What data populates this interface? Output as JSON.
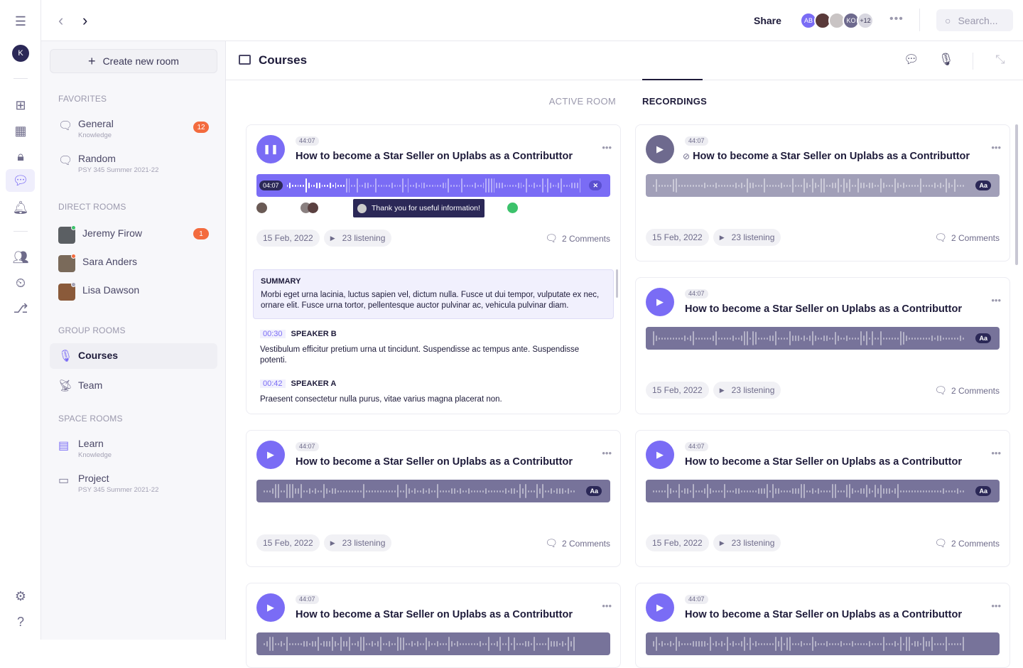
{
  "rail": {
    "avatar_initial": "K",
    "icons": [
      "menu-expand-icon",
      "add-square-icon",
      "grid-icon",
      "lock-icon",
      "chat-icon",
      "bell-icon",
      "people-icon",
      "calendar-clock-icon",
      "workflow-icon",
      "gear-icon",
      "help-icon"
    ]
  },
  "topbar": {
    "share_label": "Share",
    "avatars": [
      {
        "initials": "AB",
        "color": "#7a6cf5"
      },
      {
        "initials": "",
        "color": "#5a3a3a"
      },
      {
        "initials": "",
        "color": "#c9c4c4"
      },
      {
        "initials": "KO",
        "color": "#6e6a8e"
      },
      {
        "initials": "+12",
        "color": "#d8d7e0"
      }
    ],
    "search_placeholder": "Search..."
  },
  "sidebar": {
    "create_label": "Create new room",
    "favorites_label": "FAVORITES",
    "favorites": [
      {
        "name": "General",
        "sub": "Knowledge",
        "badge": "12"
      },
      {
        "name": "Random",
        "sub": "PSY 345 Summer 2021-22"
      }
    ],
    "direct_label": "DIRECT ROOMS",
    "direct": [
      {
        "name": "Jeremy Firow",
        "badge": "1",
        "status": "#3cc26b",
        "photo": "#5b5f63"
      },
      {
        "name": "Sara Anders",
        "status": "#f36b3e",
        "photo": "#7a6a5a"
      },
      {
        "name": "Lisa Dawson",
        "status": "#a4a2b5",
        "photo": "#8a5a3a"
      }
    ],
    "group_label": "GROUP ROOMS",
    "group": [
      {
        "name": "Courses"
      },
      {
        "name": "Team"
      }
    ],
    "space_label": "SPACE ROOMS",
    "space": [
      {
        "name": "Learn",
        "sub": "Knowledge"
      },
      {
        "name": "Project",
        "sub": "PSY 345 Summer 2021-22"
      }
    ]
  },
  "main": {
    "title": "Courses",
    "tabs": [
      {
        "label": "ACTIVE ROOM",
        "active": false
      },
      {
        "label": "RECORDINGS",
        "active": true
      }
    ]
  },
  "colors": {
    "accent": "#7a6cf5",
    "muted_play": "#6e6a8e",
    "wave_light": "#a19fb8",
    "wave_dark": "#77739a",
    "badge": "#f36b3e"
  },
  "cards": [
    {
      "duration": "44:07",
      "title": "How to become a Star Seller on Uplabs as a Contributtor",
      "date": "15 Feb, 2022",
      "listening": "23 listening",
      "comments": "2 Comments",
      "state": "playing",
      "current_time": "04:07",
      "tooltip": "Thank you for useful information!",
      "summary_label": "SUMMARY",
      "summary": "Morbi eget urna lacinia, luctus sapien vel, dictum nulla. Fusce ut dui tempor, vulputate ex nec, ornare elit. Fusce urna tortor, pellentesque auctor pulvinar ac, vehicula pulvinar diam.",
      "transcript": [
        {
          "time": "00:30",
          "speaker": "SPEAKER B",
          "text": "Vestibulum efficitur pretium urna ut tincidunt. Suspendisse ac tempus ante. Suspendisse potenti."
        },
        {
          "time": "00:42",
          "speaker": "SPEAKER A",
          "text": "Praesent consectetur nulla purus, vitae varius magna placerat non."
        }
      ]
    },
    {
      "duration": "44:07",
      "title": "How to become a Star Seller on Uplabs as a Contributtor",
      "date": "15 Feb, 2022",
      "listening": "23 listening",
      "comments": "2 Comments",
      "state": "hidden",
      "caption": "Aa"
    },
    {
      "duration": "44:07",
      "title": "How to become a Star Seller on Uplabs as a Contributtor",
      "date": "15 Feb, 2022",
      "listening": "23 listening",
      "comments": "2 Comments",
      "state": "idle",
      "caption": "Aa"
    },
    {
      "duration": "44:07",
      "title": "How to become a Star Seller on Uplabs as a Contributtor",
      "date": "15 Feb, 2022",
      "listening": "23 listening",
      "comments": "2 Comments",
      "state": "idle",
      "caption": "Aa"
    },
    {
      "duration": "44:07",
      "title": "How to become a Star Seller on Uplabs as a Contributtor",
      "date": "15 Feb, 2022",
      "listening": "23 listening",
      "comments": "2 Comments",
      "state": "idle",
      "caption": "Aa"
    },
    {
      "duration": "44:07",
      "title": "How to become a Star Seller on Uplabs as a Contributtor",
      "state": "idle"
    },
    {
      "duration": "44:07",
      "title": "How to become a Star Seller on Uplabs as a Contributtor",
      "state": "idle"
    }
  ]
}
